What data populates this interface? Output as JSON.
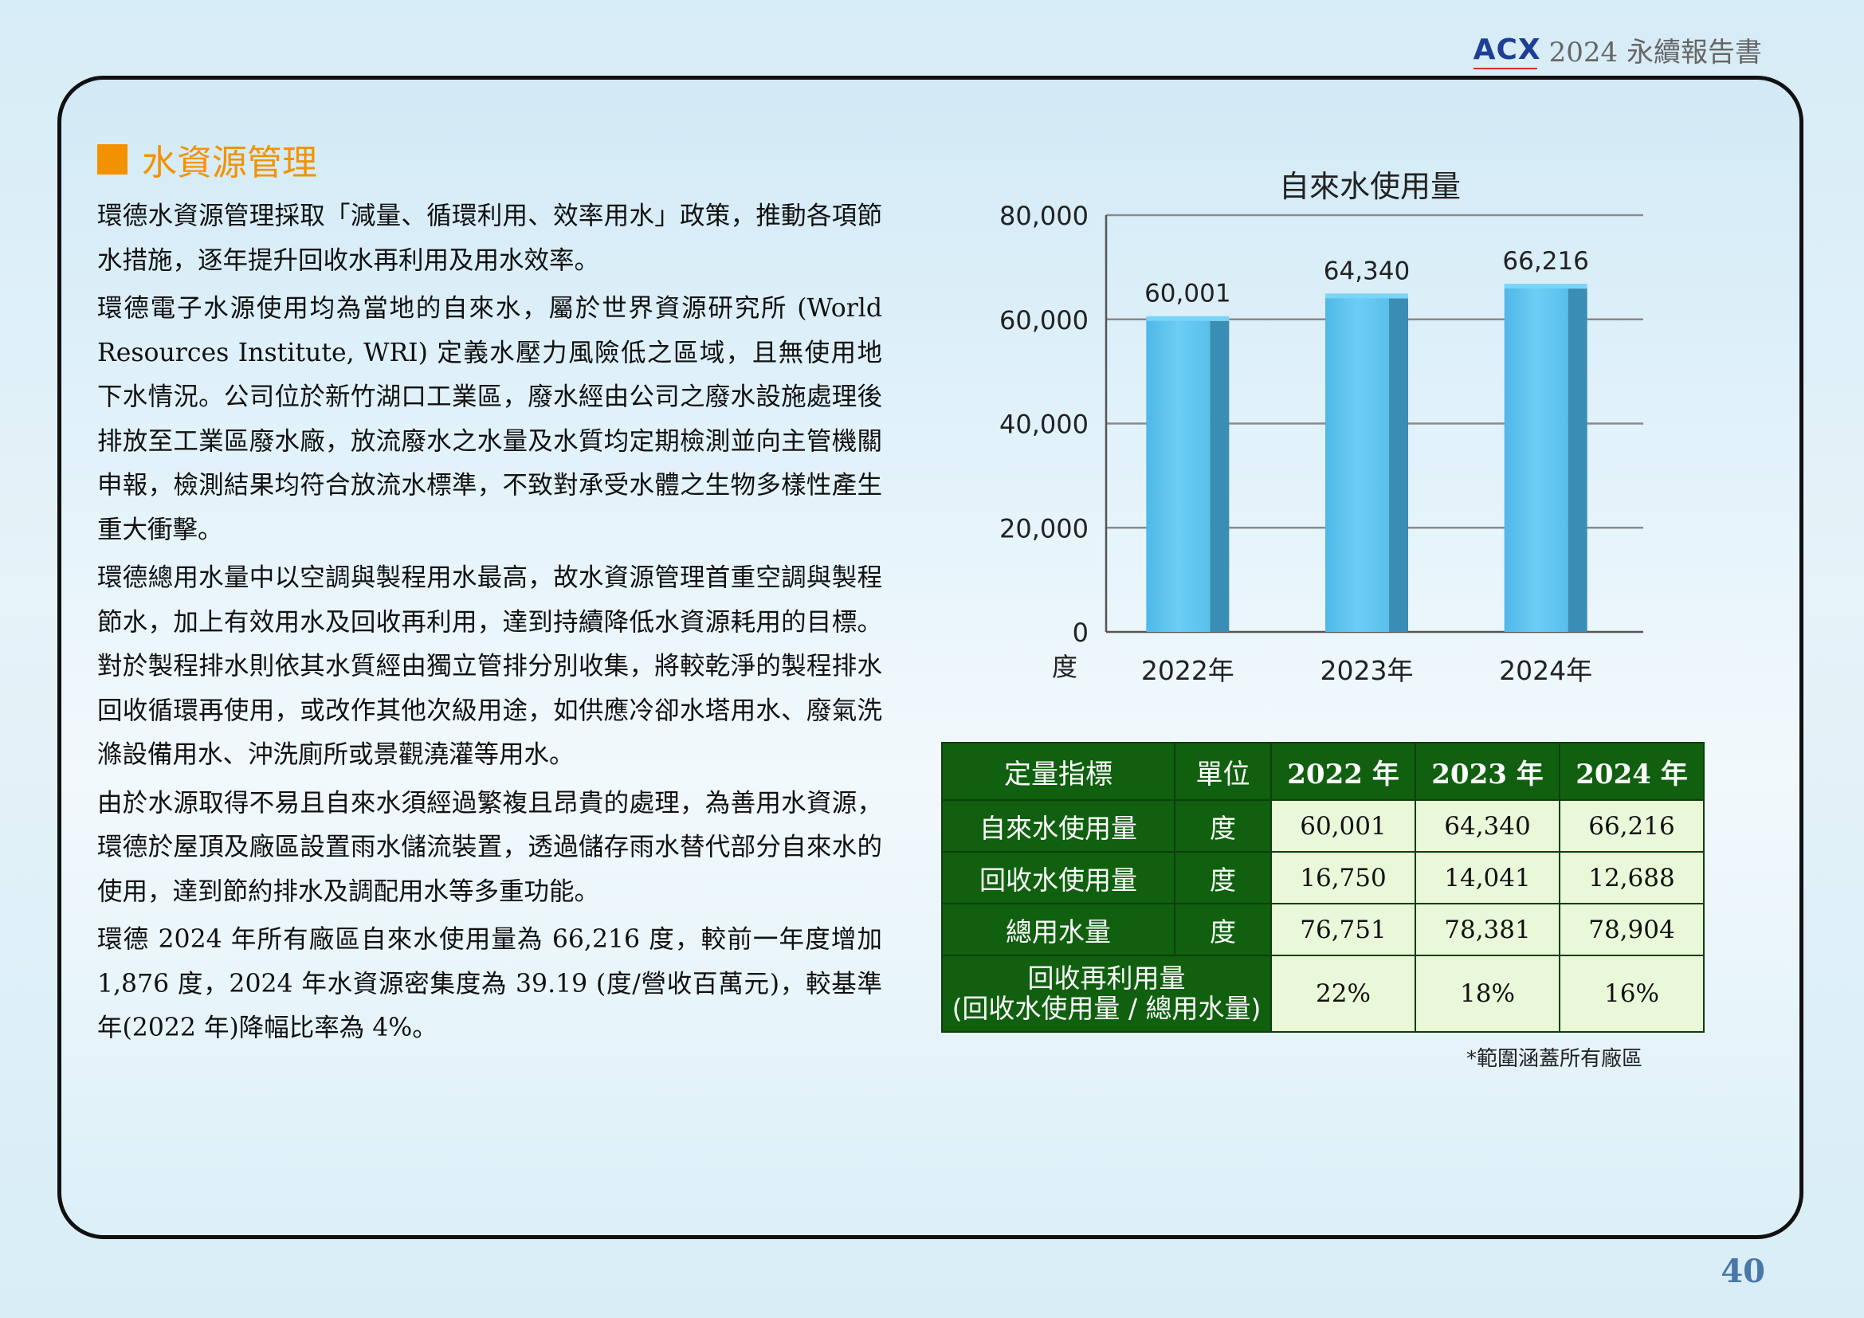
{
  "header": {
    "logo_text": "ACX",
    "report_title": "2024 永續報告書"
  },
  "section": {
    "title": "水資源管理"
  },
  "paragraphs": [
    "環德水資源管理採取「減量、循環利用、效率用水」政策，推動各項節水措施，逐年提升回收水再利用及用水效率。",
    "環德電子水源使用均為當地的自來水，屬於世界資源研究所 (World Resources Institute, WRI) 定義水壓力風險低之區域，且無使用地下水情況。公司位於新竹湖口工業區，廢水經由公司之廢水設施處理後排放至工業區廢水廠，放流廢水之水量及水質均定期檢測並向主管機關申報，檢測結果均符合放流水標準，不致對承受水體之生物多樣性產生重大衝擊。",
    "環德總用水量中以空調與製程用水最高，故水資源管理首重空調與製程節水，加上有效用水及回收再利用，達到持續降低水資源耗用的目標。對於製程排水則依其水質經由獨立管排分別收集，將較乾淨的製程排水回收循環再使用，或改作其他次級用途，如供應冷卻水塔用水、廢氣洗滌設備用水、沖洗廁所或景觀澆灌等用水。",
    "由於水源取得不易且自來水須經過繁複且昂貴的處理，為善用水資源，環德於屋頂及廠區設置雨水儲流裝置，透過儲存雨水替代部分自來水的使用，達到節約排水及調配用水等多重功能。",
    "環德 2024 年所有廠區自來水使用量為 66,216 度，較前一年度增加 1,876 度，2024 年水資源密集度為 39.19 (度/營收百萬元)，較基準年(2022 年)降幅比率為 4%。"
  ],
  "chart_data": {
    "type": "bar",
    "title": "自來水使用量",
    "categories": [
      "2022年",
      "2023年",
      "2024年"
    ],
    "values": [
      60001,
      64340,
      66216
    ],
    "value_labels": [
      "60,001",
      "64,340",
      "66,216"
    ],
    "ylim": [
      0,
      80000
    ],
    "yticks": [
      0,
      20000,
      40000,
      60000,
      80000
    ],
    "ytick_labels": [
      "0",
      "20,000",
      "40,000",
      "60,000",
      "80,000"
    ],
    "ylabel": "度",
    "xlabel": "",
    "grid": true,
    "bar_color": "#5ec4ee"
  },
  "table": {
    "headers": [
      "定量指標",
      "單位",
      "2022 年",
      "2023 年",
      "2024 年"
    ],
    "rows": [
      {
        "label": "自來水使用量",
        "unit": "度",
        "values": [
          "60,001",
          "64,340",
          "66,216"
        ]
      },
      {
        "label": "回收水使用量",
        "unit": "度",
        "values": [
          "16,750",
          "14,041",
          "12,688"
        ]
      },
      {
        "label": "總用水量",
        "unit": "度",
        "values": [
          "76,751",
          "78,381",
          "78,904"
        ]
      }
    ],
    "ratio_row": {
      "label_line1": "回收再利用量",
      "label_line2": "(回收水使用量 / 總用水量)",
      "values": [
        "22%",
        "18%",
        "16%"
      ]
    },
    "note": "*範圍涵蓋所有廠區"
  },
  "page_number": "40",
  "colors": {
    "accent_orange": "#f39200",
    "table_green": "#10600f",
    "cell_fill": "#e9f8d8",
    "page_num_blue": "#4a76a8"
  }
}
